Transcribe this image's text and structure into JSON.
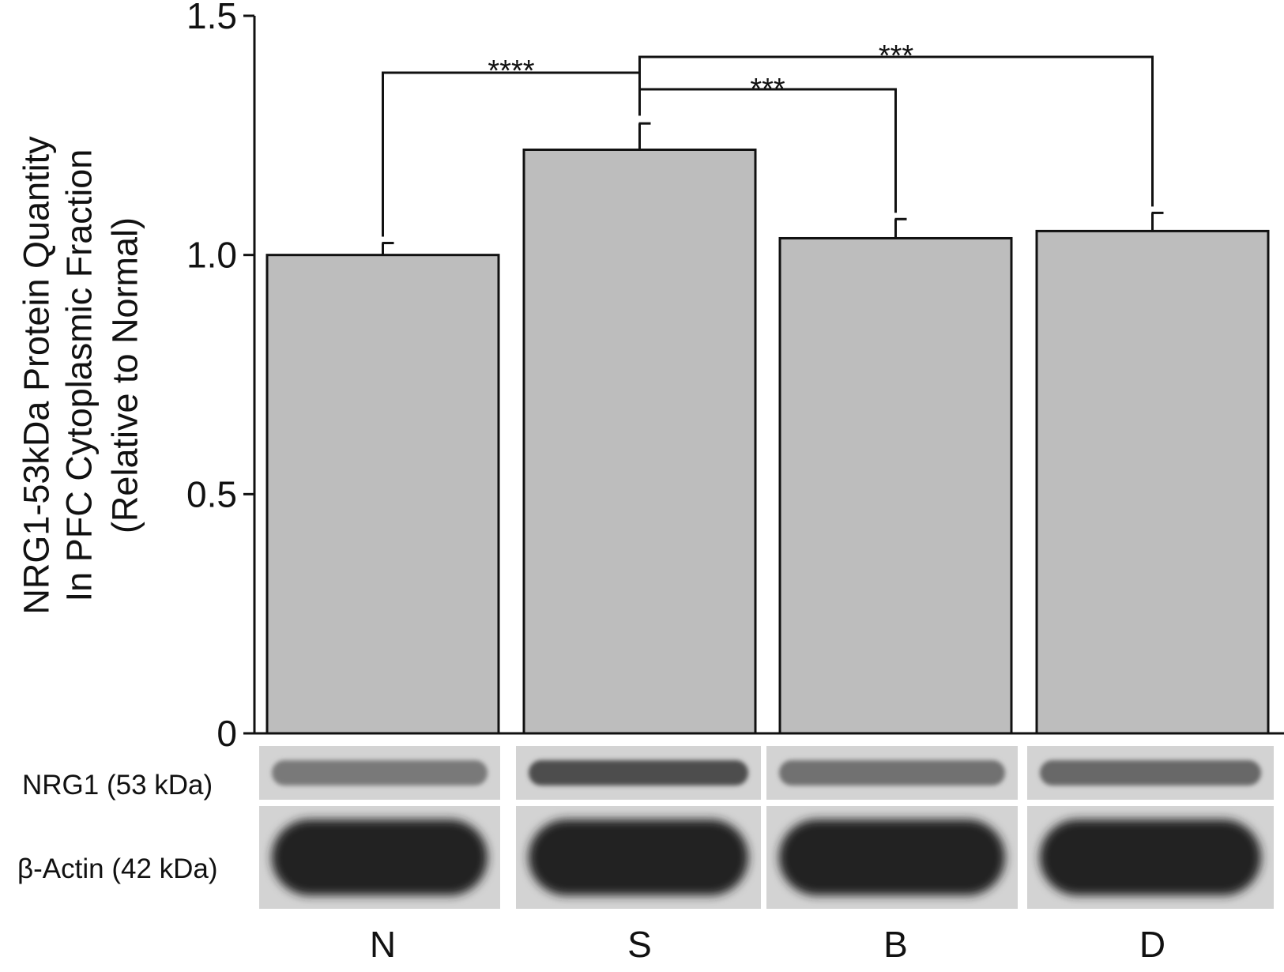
{
  "chart_data": {
    "type": "bar",
    "categories": [
      "N",
      "S",
      "B",
      "D"
    ],
    "values": [
      1.0,
      1.22,
      1.035,
      1.05
    ],
    "errors": [
      0.025,
      0.055,
      0.04,
      0.038
    ],
    "ylabel_lines": [
      "NRG1-53kDa Protein Quantity",
      "In PFC Cytoplasmic Fraction",
      "(Relative to Normal)"
    ],
    "yticks": [
      0,
      0.5,
      1.0,
      1.5
    ],
    "ytick_labels": [
      "0",
      "0.5",
      "1.0",
      "1.5"
    ],
    "ylim": [
      0,
      1.5
    ],
    "bar_color": "#bdbdbd",
    "significance": [
      {
        "from": "S",
        "to": "N",
        "label": "****"
      },
      {
        "from": "S",
        "to": "B",
        "label": "***"
      },
      {
        "from": "S",
        "to": "D",
        "label": "***"
      }
    ]
  },
  "blot": {
    "rows": [
      {
        "label": "NRG1 (53 kDa)",
        "band_intensity": [
          0.45,
          0.7,
          0.5,
          0.55
        ]
      },
      {
        "label": "β-Actin (42 kDa)",
        "band_intensity": [
          0.95,
          0.95,
          0.95,
          0.95
        ]
      }
    ]
  }
}
